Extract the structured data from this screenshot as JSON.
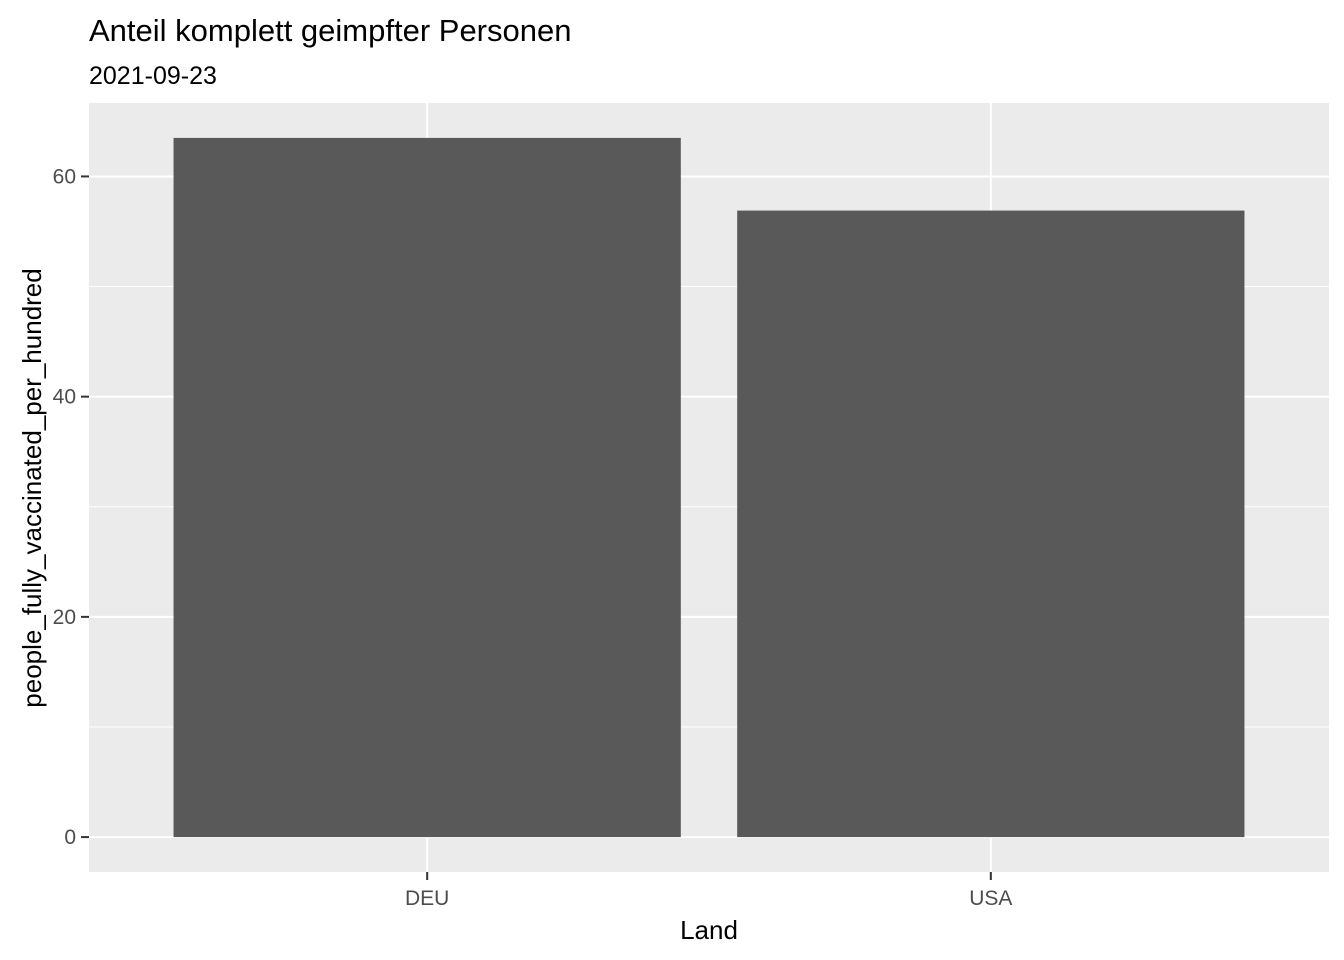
{
  "chart_data": {
    "type": "bar",
    "title": "Anteil komplett geimpfter Personen",
    "subtitle": "2021-09-23",
    "xlabel": "Land",
    "ylabel": "people_fully_vaccinated_per_hundred",
    "categories": [
      "DEU",
      "USA"
    ],
    "values": [
      63.5,
      56.9
    ],
    "ylim": [
      -3.17,
      66.67
    ],
    "yticks": [
      0,
      20,
      40,
      60
    ],
    "grid": true,
    "legend": "none",
    "colors": {
      "panel": "#ebebeb",
      "bar": "#595959",
      "grid": "#ffffff",
      "tick": "#333333",
      "tick_label": "#4d4d4d"
    }
  }
}
